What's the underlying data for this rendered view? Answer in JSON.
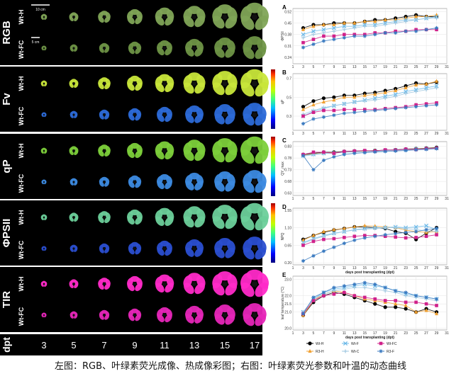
{
  "left": {
    "row_labels": [
      "RGB",
      "Fv",
      "qP",
      "ΦPSII",
      "TIR"
    ],
    "sub_labels": [
      "Wt-H",
      "Wt-FC"
    ],
    "scale_bars": [
      "10 cm",
      "5 cm"
    ],
    "timepoints": [
      "3",
      "5",
      "7",
      "9",
      "11",
      "13",
      "15",
      "17"
    ],
    "x_axis_label": "dpt"
  },
  "right": {
    "x_ticks": [
      "1",
      "3",
      "5",
      "7",
      "9",
      "11",
      "13",
      "15",
      "17",
      "19",
      "21",
      "23",
      "25",
      "27",
      "29",
      "31"
    ],
    "x_label": "days post transplanting (dpt)",
    "legend": [
      {
        "label": "Wt-H",
        "color": "#000000",
        "marker": "circle"
      },
      {
        "label": "R3-H",
        "color": "#f0a030",
        "marker": "triangle"
      },
      {
        "label": "Wt-F",
        "color": "#6ab8e8",
        "marker": "cross"
      },
      {
        "label": "Wt-C",
        "color": "#a0c8e0",
        "marker": "plus"
      },
      {
        "label": "Wt-FC",
        "color": "#d0208a",
        "marker": "square"
      },
      {
        "label": "R3-F",
        "color": "#3a7ac0",
        "marker": "star"
      }
    ]
  },
  "chart_data": [
    {
      "type": "line",
      "panel": "A",
      "ylabel": "ΦPSII",
      "ylim": [
        0.2,
        0.54
      ],
      "yticks": [
        "0.52",
        "0.45",
        "0.38",
        "0.31",
        "0.24"
      ],
      "x": [
        3,
        5,
        7,
        9,
        11,
        13,
        15,
        17,
        19,
        21,
        23,
        25,
        27,
        29
      ],
      "series": [
        {
          "name": "Wt-H",
          "values": [
            0.42,
            0.44,
            0.44,
            0.45,
            0.45,
            0.45,
            0.46,
            0.47,
            0.47,
            0.48,
            0.49,
            0.5,
            0.49,
            0.49
          ]
        },
        {
          "name": "R3-H",
          "values": [
            0.41,
            0.43,
            0.44,
            0.44,
            0.45,
            0.45,
            0.46,
            0.46,
            0.47,
            0.47,
            0.48,
            0.49,
            0.49,
            0.5
          ]
        },
        {
          "name": "Wt-F",
          "values": [
            0.38,
            0.4,
            0.41,
            0.42,
            0.43,
            0.43,
            0.44,
            0.44,
            0.45,
            0.46,
            0.47,
            0.47,
            0.48,
            0.49
          ]
        },
        {
          "name": "Wt-C",
          "values": [
            0.36,
            0.38,
            0.39,
            0.4,
            0.41,
            0.42,
            0.43,
            0.43,
            0.44,
            0.45,
            0.46,
            0.47,
            0.48,
            0.48
          ]
        },
        {
          "name": "Wt-FC",
          "values": [
            0.33,
            0.35,
            0.37,
            0.37,
            0.38,
            0.38,
            0.38,
            0.39,
            0.39,
            0.4,
            0.4,
            0.41,
            0.41,
            0.41
          ]
        },
        {
          "name": "R3-F",
          "values": [
            0.3,
            0.32,
            0.34,
            0.35,
            0.36,
            0.37,
            0.37,
            0.38,
            0.39,
            0.39,
            0.4,
            0.4,
            0.41,
            0.42
          ]
        }
      ]
    },
    {
      "type": "line",
      "panel": "B",
      "ylabel": "qP",
      "ylim": [
        0.15,
        0.75
      ],
      "yticks": [
        "0.7",
        "0.5",
        "0.3"
      ],
      "x": [
        3,
        5,
        7,
        9,
        11,
        13,
        15,
        17,
        19,
        21,
        23,
        25,
        27,
        29
      ],
      "series": [
        {
          "name": "Wt-H",
          "values": [
            0.4,
            0.46,
            0.49,
            0.5,
            0.52,
            0.52,
            0.54,
            0.55,
            0.57,
            0.59,
            0.62,
            0.65,
            0.64,
            0.66
          ]
        },
        {
          "name": "R3-H",
          "values": [
            0.37,
            0.42,
            0.45,
            0.47,
            0.5,
            0.5,
            0.52,
            0.53,
            0.55,
            0.57,
            0.6,
            0.63,
            0.64,
            0.67
          ]
        },
        {
          "name": "Wt-F",
          "values": [
            0.3,
            0.35,
            0.38,
            0.41,
            0.43,
            0.45,
            0.47,
            0.49,
            0.51,
            0.53,
            0.56,
            0.58,
            0.6,
            0.62
          ]
        },
        {
          "name": "Wt-C",
          "values": [
            0.32,
            0.36,
            0.39,
            0.41,
            0.43,
            0.45,
            0.46,
            0.47,
            0.49,
            0.51,
            0.54,
            0.56,
            0.58,
            0.6
          ]
        },
        {
          "name": "Wt-FC",
          "values": [
            0.3,
            0.34,
            0.36,
            0.36,
            0.37,
            0.37,
            0.37,
            0.37,
            0.38,
            0.39,
            0.4,
            0.42,
            0.43,
            0.44
          ]
        },
        {
          "name": "R3-F",
          "values": [
            0.22,
            0.27,
            0.29,
            0.31,
            0.33,
            0.34,
            0.35,
            0.36,
            0.37,
            0.38,
            0.39,
            0.4,
            0.41,
            0.42
          ]
        }
      ]
    },
    {
      "type": "line",
      "panel": "C",
      "ylabel": "QY_max",
      "ylim": [
        0.62,
        0.85
      ],
      "yticks": [
        "0.83",
        "0.78",
        "0.73",
        "0.68",
        "0.63"
      ],
      "x": [
        3,
        5,
        7,
        9,
        11,
        13,
        15,
        17,
        19,
        21,
        23,
        25,
        27,
        29
      ],
      "series": [
        {
          "name": "Wt-H",
          "values": [
            0.795,
            0.8,
            0.805,
            0.805,
            0.808,
            0.81,
            0.81,
            0.812,
            0.813,
            0.815,
            0.818,
            0.82,
            0.822,
            0.825
          ]
        },
        {
          "name": "R3-H",
          "values": [
            0.792,
            0.798,
            0.802,
            0.803,
            0.805,
            0.808,
            0.81,
            0.811,
            0.812,
            0.814,
            0.816,
            0.819,
            0.821,
            0.823
          ]
        },
        {
          "name": "Wt-F",
          "values": [
            0.79,
            0.796,
            0.8,
            0.802,
            0.805,
            0.807,
            0.808,
            0.81,
            0.812,
            0.814,
            0.816,
            0.818,
            0.82,
            0.822
          ]
        },
        {
          "name": "Wt-C",
          "values": [
            0.788,
            0.794,
            0.799,
            0.801,
            0.804,
            0.806,
            0.807,
            0.809,
            0.811,
            0.813,
            0.815,
            0.817,
            0.819,
            0.821
          ]
        },
        {
          "name": "Wt-FC",
          "values": [
            0.795,
            0.805,
            0.805,
            0.8,
            0.808,
            0.81,
            0.812,
            0.81,
            0.815,
            0.814,
            0.818,
            0.816,
            0.82,
            0.822
          ]
        },
        {
          "name": "R3-F",
          "values": [
            0.79,
            0.73,
            0.77,
            0.785,
            0.795,
            0.8,
            0.803,
            0.806,
            0.808,
            0.81,
            0.812,
            0.815,
            0.817,
            0.82
          ]
        }
      ]
    },
    {
      "type": "line",
      "panel": "D",
      "ylabel": "NPQ",
      "ylim": [
        0.15,
        1.6
      ],
      "yticks": [
        "1.55",
        "1.10",
        "0.65",
        "0.20"
      ],
      "x": [
        3,
        5,
        7,
        9,
        11,
        13,
        15,
        17,
        19,
        21,
        23,
        25,
        27,
        29
      ],
      "series": [
        {
          "name": "Wt-H",
          "values": [
            0.8,
            0.9,
            0.98,
            1.04,
            1.08,
            1.12,
            1.12,
            1.1,
            1.08,
            1.0,
            0.96,
            0.8,
            0.96,
            1.1
          ]
        },
        {
          "name": "R3-H",
          "values": [
            0.78,
            0.9,
            1.0,
            1.05,
            1.08,
            1.12,
            1.15,
            1.14,
            1.12,
            1.1,
            1.04,
            1.0,
            0.98,
            1.0
          ]
        },
        {
          "name": "Wt-F",
          "values": [
            0.72,
            0.82,
            0.9,
            0.96,
            1.0,
            1.05,
            1.08,
            1.1,
            1.1,
            1.12,
            1.1,
            1.12,
            1.15,
            1.05
          ]
        },
        {
          "name": "Wt-C",
          "values": [
            0.7,
            0.8,
            0.88,
            0.95,
            1.0,
            1.04,
            1.06,
            1.08,
            1.1,
            1.1,
            1.08,
            1.05,
            1.02,
            1.0
          ]
        },
        {
          "name": "Wt-FC",
          "values": [
            0.65,
            0.75,
            0.8,
            0.82,
            0.85,
            0.88,
            0.9,
            0.9,
            0.88,
            0.86,
            0.84,
            0.85,
            0.88,
            0.92
          ]
        },
        {
          "name": "R3-F",
          "values": [
            0.25,
            0.38,
            0.5,
            0.6,
            0.7,
            0.78,
            0.84,
            0.88,
            0.92,
            0.95,
            0.98,
            1.0,
            1.05,
            1.08
          ]
        }
      ]
    },
    {
      "type": "line",
      "panel": "E",
      "ylabel": "leaf temperature (°C)",
      "ylim": [
        19.9,
        23.2
      ],
      "yticks": [
        "23.0",
        "22.0",
        "21.5",
        "21.0",
        "20.0"
      ],
      "x": [
        3,
        5,
        7,
        9,
        11,
        13,
        15,
        17,
        19,
        21,
        23,
        25,
        27,
        29
      ],
      "series": [
        {
          "name": "Wt-H",
          "values": [
            20.8,
            21.6,
            22.0,
            22.2,
            22.1,
            21.9,
            21.7,
            21.5,
            21.3,
            21.3,
            21.2,
            21.0,
            21.2,
            21.0
          ]
        },
        {
          "name": "R3-H",
          "values": [
            20.8,
            21.7,
            22.1,
            22.3,
            22.2,
            22.0,
            21.8,
            21.7,
            21.6,
            21.5,
            21.4,
            21.0,
            21.1,
            20.9
          ]
        },
        {
          "name": "Wt-F",
          "values": [
            21.0,
            21.8,
            22.2,
            22.4,
            22.5,
            22.6,
            22.7,
            22.6,
            22.5,
            22.3,
            22.1,
            22.0,
            21.9,
            21.8
          ]
        },
        {
          "name": "Wt-C",
          "values": [
            21.0,
            21.8,
            22.1,
            22.3,
            22.4,
            22.5,
            22.5,
            22.4,
            22.3,
            22.2,
            22.0,
            21.9,
            21.8,
            21.7
          ]
        },
        {
          "name": "Wt-FC",
          "values": [
            20.9,
            21.7,
            22.0,
            22.1,
            22.2,
            22.0,
            21.9,
            21.8,
            21.7,
            21.7,
            21.6,
            21.6,
            21.5,
            21.4
          ]
        },
        {
          "name": "R3-F",
          "values": [
            20.9,
            21.9,
            22.2,
            22.5,
            22.6,
            22.7,
            22.8,
            22.7,
            22.5,
            22.3,
            22.2,
            22.0,
            21.9,
            21.8
          ]
        }
      ]
    }
  ],
  "caption": "左图：RGB、叶绿素荧光成像、热成像彩图；右图：叶绿素荧光参数和叶温的动态曲线"
}
